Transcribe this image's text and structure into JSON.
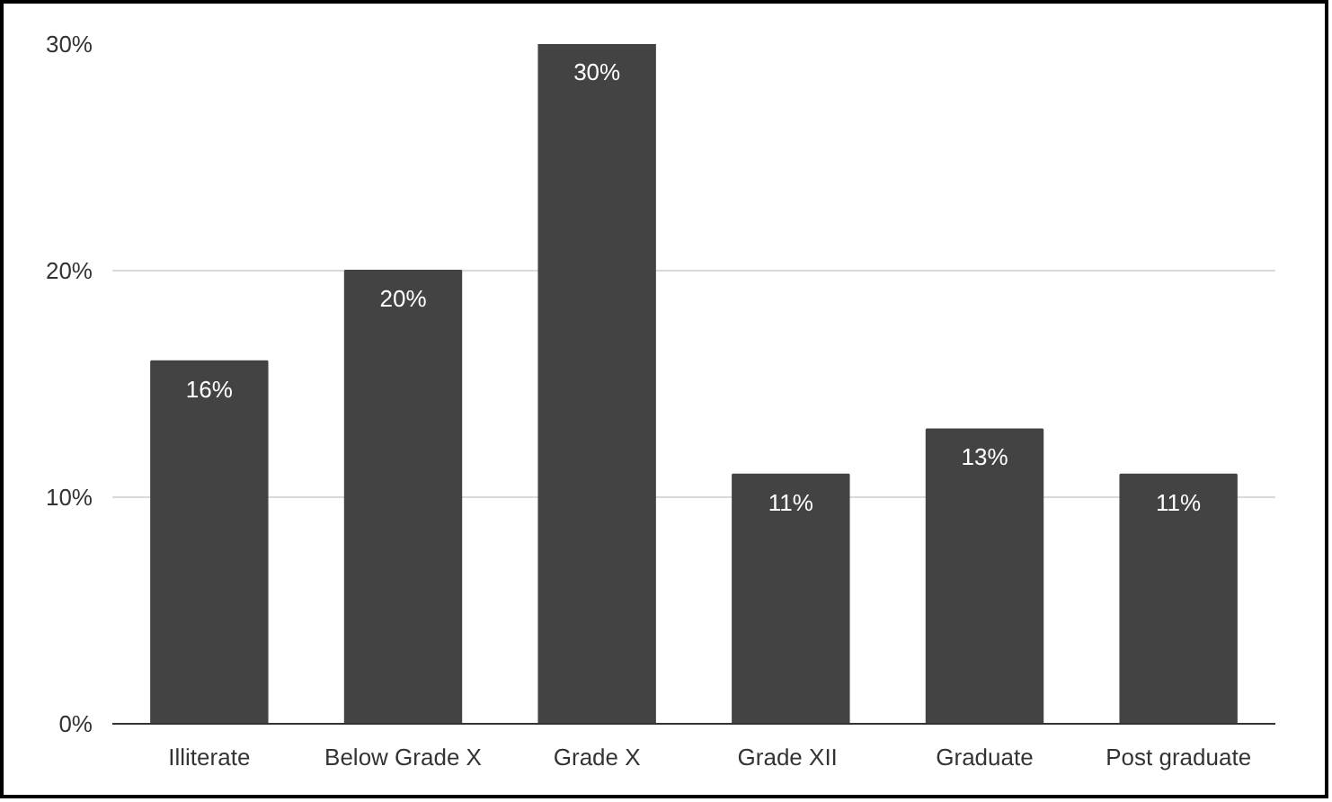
{
  "chart_data": {
    "type": "bar",
    "categories": [
      "Illiterate",
      "Below Grade X",
      "Grade X",
      "Grade  XII",
      "Graduate",
      "Post graduate"
    ],
    "values": [
      16,
      20,
      30,
      11,
      13,
      11
    ],
    "value_labels": [
      "16%",
      "20%",
      "30%",
      "11%",
      "13%",
      "11%"
    ],
    "color": "#434343",
    "ylim": [
      0,
      30
    ],
    "yticks": [
      {
        "value": 0,
        "label": "0%"
      },
      {
        "value": 10,
        "label": "10%"
      },
      {
        "value": 20,
        "label": "20%"
      },
      {
        "value": 30,
        "label": "30%"
      }
    ],
    "grid": "y"
  }
}
